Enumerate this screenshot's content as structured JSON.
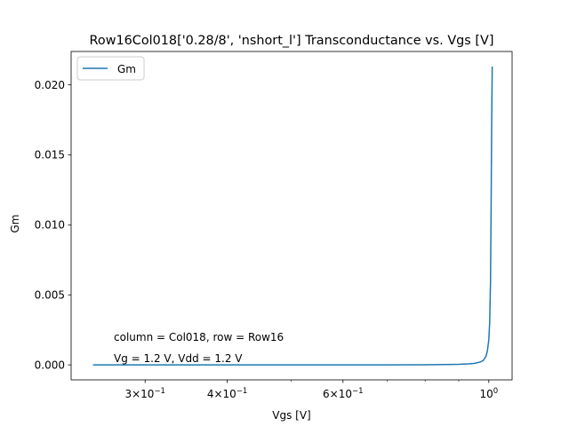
{
  "chart_data": {
    "type": "line",
    "title": "Row16Col018['0.28/8', 'nshort_l'] Transconductance vs. Vgs [V]",
    "xlabel": "Vgs [V]",
    "ylabel": "Gm",
    "xscale": "log",
    "xlim": [
      0.2315,
      1.085
    ],
    "ylim": [
      -0.00107,
      0.02238
    ],
    "xticks": [
      {
        "value": 0.3,
        "base": "3",
        "mult": "×",
        "exp": "10",
        "pow": "−1"
      },
      {
        "value": 0.4,
        "base": "4",
        "mult": "×",
        "exp": "10",
        "pow": "−1"
      },
      {
        "value": 0.6,
        "base": "6",
        "mult": "×",
        "exp": "10",
        "pow": "−1"
      },
      {
        "value": 1.0,
        "base": "",
        "mult": "",
        "exp": "10",
        "pow": "0"
      }
    ],
    "xminor": [
      0.5,
      0.7,
      0.8,
      0.9
    ],
    "yticks": [
      {
        "value": 0.0,
        "label": "0.000"
      },
      {
        "value": 0.005,
        "label": "0.005"
      },
      {
        "value": 0.01,
        "label": "0.010"
      },
      {
        "value": 0.015,
        "label": "0.015"
      },
      {
        "value": 0.02,
        "label": "0.020"
      }
    ],
    "grid": false,
    "legend": {
      "position": "top-left",
      "entries": [
        "Gm"
      ]
    },
    "annotations": [
      "column = Col018, row = Row16",
      "Vg = 1.2 V, Vdd = 1.2 V"
    ],
    "series": [
      {
        "name": "Gm",
        "color": "#1f77b4",
        "points": [
          [
            0.25,
            0.0
          ],
          [
            0.3,
            0.0
          ],
          [
            0.4,
            0.0
          ],
          [
            0.5,
            0.0
          ],
          [
            0.6,
            0.0
          ],
          [
            0.7,
            0.0
          ],
          [
            0.8,
            1e-05
          ],
          [
            0.85,
            2e-05
          ],
          [
            0.9,
            4e-05
          ],
          [
            0.93,
            7e-05
          ],
          [
            0.95,
            0.0001
          ],
          [
            0.97,
            0.0002
          ],
          [
            0.98,
            0.0003
          ],
          [
            0.99,
            0.0006
          ],
          [
            0.995,
            0.001
          ],
          [
            1.0,
            0.0018
          ],
          [
            1.003,
            0.003
          ],
          [
            1.006,
            0.006
          ],
          [
            1.008,
            0.011
          ],
          [
            1.01,
            0.017
          ],
          [
            1.012,
            0.0213
          ]
        ]
      }
    ]
  }
}
